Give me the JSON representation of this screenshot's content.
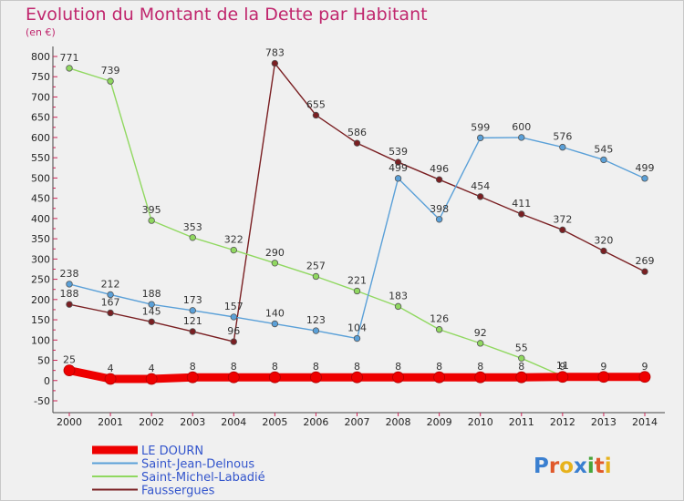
{
  "title": "Evolution du Montant de la Dette par Habitant",
  "subtitle": "(en €)",
  "brand": "Proxiti",
  "chart_data": {
    "type": "line",
    "x": [
      2000,
      2001,
      2002,
      2003,
      2004,
      2005,
      2006,
      2007,
      2008,
      2009,
      2010,
      2011,
      2012,
      2013,
      2014
    ],
    "ylim": [
      -50,
      800
    ],
    "y_ticks": [
      -50,
      0,
      50,
      100,
      150,
      200,
      250,
      300,
      350,
      400,
      450,
      500,
      550,
      600,
      650,
      700,
      750,
      800
    ],
    "grid": false,
    "legend_position": "bottom-left",
    "series": [
      {
        "name": "LE DOURN",
        "color": "#ee0000",
        "values": [
          25,
          4,
          4,
          8,
          8,
          8,
          8,
          8,
          8,
          8,
          8,
          8,
          9,
          9,
          9
        ],
        "labels": [
          "25",
          "4",
          "4",
          "8",
          "8",
          "8",
          "8",
          "8",
          "8",
          "8",
          "8",
          "8",
          "9",
          "9",
          "9"
        ]
      },
      {
        "name": "Saint-Jean-Delnous",
        "color": "#5aa0d8",
        "values": [
          238,
          212,
          188,
          173,
          157,
          140,
          123,
          104,
          499,
          398,
          599,
          600,
          576,
          545,
          499
        ],
        "labels": [
          "238",
          "212",
          "188",
          "173",
          "157",
          "140",
          "123",
          "104",
          "499",
          "398",
          "599",
          "600",
          "576",
          "545",
          "499"
        ]
      },
      {
        "name": "Saint-Michel-Labadié",
        "color": "#90d860",
        "values": [
          771,
          739,
          395,
          353,
          322,
          290,
          257,
          221,
          183,
          126,
          92,
          55,
          11,
          null,
          null
        ],
        "labels": [
          "771",
          "739",
          "395",
          "353",
          "322",
          "290",
          "257",
          "221",
          "183",
          "126",
          "92",
          "55",
          "11",
          "",
          ""
        ]
      },
      {
        "name": "Faussergues",
        "color": "#7a1f22",
        "values": [
          188,
          167,
          145,
          121,
          96,
          783,
          655,
          586,
          539,
          496,
          454,
          411,
          372,
          320,
          269
        ],
        "labels": [
          "188",
          "167",
          "145",
          "121",
          "96",
          "783",
          "655",
          "586",
          "539",
          "496",
          "454",
          "411",
          "372",
          "320",
          "269"
        ]
      }
    ]
  }
}
